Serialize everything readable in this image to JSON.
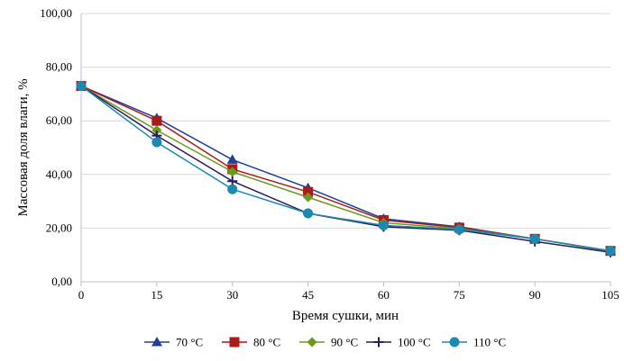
{
  "chart_data": {
    "type": "line",
    "title": "",
    "xlabel": "Время сушки, мин",
    "ylabel": "Массовая доля влаги, %",
    "x": [
      0,
      15,
      30,
      45,
      60,
      75,
      90,
      105
    ],
    "x_tick_labels": [
      "0",
      "15",
      "30",
      "45",
      "60",
      "75",
      "90",
      "105"
    ],
    "xlim": [
      0,
      105
    ],
    "ylim": [
      0,
      100
    ],
    "y_tick_labels": [
      "0,00",
      "20,00",
      "40,00",
      "60,00",
      "80,00",
      "100,00"
    ],
    "y_ticks": [
      0,
      20,
      40,
      60,
      80,
      100
    ],
    "grid": "horizontal",
    "legend_position": "bottom",
    "series": [
      {
        "name": "70 °C",
        "color": "#1f3f99",
        "marker": "triangle",
        "values": [
          73.0,
          61.0,
          45.5,
          35.0,
          23.5,
          20.5,
          16.0,
          11.5
        ]
      },
      {
        "name": "80 °C",
        "color": "#aa1a1a",
        "marker": "square",
        "values": [
          73.0,
          60.0,
          42.0,
          33.5,
          23.0,
          20.2,
          16.0,
          11.5
        ]
      },
      {
        "name": "90 °C",
        "color": "#6b9a1a",
        "marker": "diamond",
        "values": [
          73.0,
          56.5,
          41.0,
          31.5,
          22.0,
          19.8,
          16.0,
          11.3
        ]
      },
      {
        "name": "100 °C",
        "color": "#2a1a5e",
        "marker": "plus",
        "values": [
          73.0,
          54.5,
          37.5,
          25.5,
          20.5,
          19.2,
          15.0,
          11.0
        ]
      },
      {
        "name": "110 °C",
        "color": "#1a8ab0",
        "marker": "circle",
        "values": [
          73.0,
          52.0,
          34.5,
          25.5,
          21.0,
          19.5,
          16.0,
          11.5
        ]
      }
    ]
  }
}
